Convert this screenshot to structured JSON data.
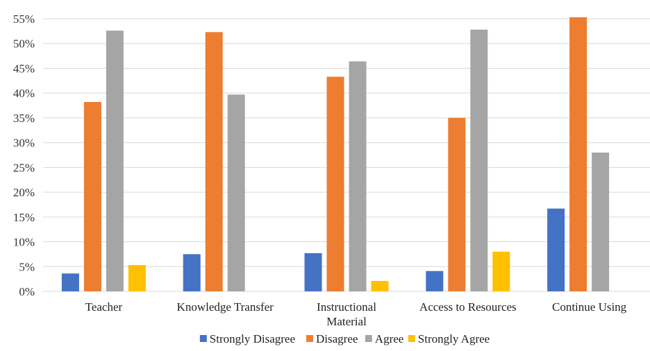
{
  "chart_data": {
    "type": "bar",
    "title": "",
    "xlabel": "",
    "ylabel": "",
    "ylim": [
      0,
      55
    ],
    "yticks": [
      0,
      5,
      10,
      15,
      20,
      25,
      30,
      35,
      40,
      45,
      50,
      55
    ],
    "ytick_labels": [
      "0%",
      "5%",
      "10%",
      "15%",
      "20%",
      "25%",
      "30%",
      "35%",
      "40%",
      "45%",
      "50%",
      "55%"
    ],
    "grid": true,
    "legend": "bottom",
    "categories": [
      [
        "Teacher"
      ],
      [
        "Knowledge Transfer"
      ],
      [
        "Instructional",
        "Material"
      ],
      [
        "Access to Resources"
      ],
      [
        "Continue Using"
      ]
    ],
    "series": [
      {
        "name": "Strongly Disagree",
        "color": "#4472c4",
        "values": [
          3.6,
          7.5,
          7.7,
          4.1,
          16.7
        ]
      },
      {
        "name": "Disagree",
        "color": "#ed7d31",
        "values": [
          38.2,
          52.3,
          43.3,
          35.0,
          55.3
        ]
      },
      {
        "name": "Agree",
        "color": "#a5a5a5",
        "values": [
          52.6,
          39.7,
          46.4,
          52.8,
          28.0
        ]
      },
      {
        "name": "Strongly Agree",
        "color": "#ffc000",
        "values": [
          5.3,
          0,
          2.1,
          8.0,
          0
        ]
      }
    ]
  }
}
